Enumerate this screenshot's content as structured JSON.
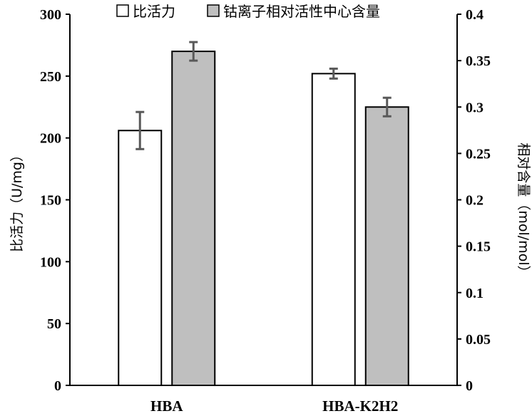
{
  "chart_data": {
    "type": "bar",
    "categories": [
      "HBA",
      "HBA-K2H2"
    ],
    "legend_position": "top",
    "grid": false,
    "series": [
      {
        "name": "比活力",
        "axis": "left",
        "values": [
          206,
          252
        ],
        "error": [
          15,
          4
        ],
        "color": "#ffffff"
      },
      {
        "name": "钴离子相对活性中心含量",
        "axis": "right",
        "values": [
          0.36,
          0.3
        ],
        "error": [
          0.01,
          0.01
        ],
        "color": "#bfbfbf"
      }
    ],
    "ylabel": "比活力（U/mg）",
    "ylabel_right": "相对含量（mol/mol）",
    "ylim": [
      0,
      300
    ],
    "ylim_right": [
      0,
      0.4
    ],
    "yticks": [
      "0",
      "50",
      "100",
      "150",
      "200",
      "250",
      "300"
    ],
    "yticks_right": [
      "0",
      "0.05",
      "0.1",
      "0.15",
      "0.2",
      "0.25",
      "0.3",
      "0.35",
      "0.4"
    ]
  }
}
